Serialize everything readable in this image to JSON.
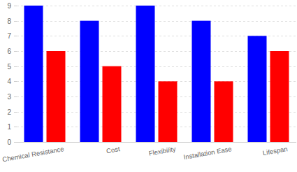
{
  "chart_data": {
    "type": "bar",
    "categories": [
      "Chemical Resistance",
      "Cost",
      "Flexibility",
      "Installation Ease",
      "Lifespan"
    ],
    "series": [
      {
        "color": "#0000ff",
        "values": [
          9,
          8,
          9,
          8,
          7
        ]
      },
      {
        "color": "#ff0000",
        "values": [
          6,
          5,
          4,
          4,
          6
        ]
      }
    ],
    "ylim": [
      0,
      9
    ],
    "yticks": [
      0,
      1,
      2,
      3,
      4,
      5,
      6,
      7,
      8,
      9
    ],
    "grid": true
  }
}
